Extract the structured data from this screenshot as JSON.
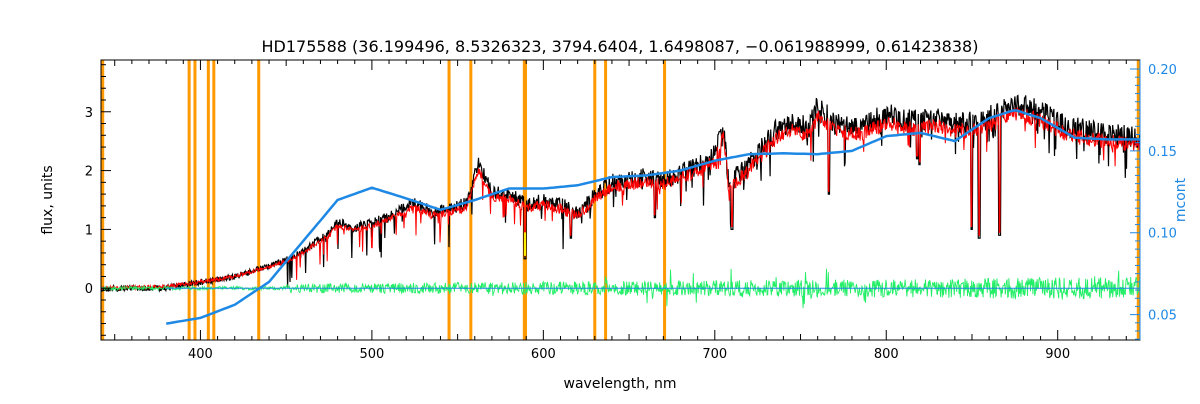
{
  "chart_data": {
    "type": "line",
    "title": "HD175588    (36.199496, 8.5326323, 3794.6404, 1.6498087, −0.061988999, 0.61423838)",
    "xlabel": "wavelength, nm",
    "ylabel": "flux, units",
    "y2label": "mcont",
    "xlim": [
      342,
      948
    ],
    "ylim": [
      -0.88,
      3.88
    ],
    "y2lim": [
      0.0345,
      0.2055
    ],
    "x_ticks": [
      400,
      500,
      600,
      700,
      800,
      900
    ],
    "y_ticks": [
      0,
      1,
      2,
      3
    ],
    "y2_ticks": [
      0.05,
      0.1,
      0.15,
      0.2
    ],
    "y2_tick_labels": [
      "0.05",
      "0.10",
      "0.15",
      "0.20"
    ],
    "grid": false,
    "colors": {
      "observed": "#000000",
      "model": "#ff0000",
      "residual": "#22ee66",
      "continuum": "#1e88e5",
      "masks": "#ff9900",
      "highlight": "#ffee00",
      "right_axis": "#1e88e5"
    },
    "mask_lines": [
      343,
      393.4,
      396.8,
      404.6,
      407.8,
      434.0,
      545.0,
      557.7,
      588.9,
      589.6,
      630.0,
      636.3,
      670.7,
      947
    ],
    "envelope": [
      {
        "x": 342,
        "y": 0.04
      },
      {
        "x": 380,
        "y": 0.06
      },
      {
        "x": 400,
        "y": 0.15
      },
      {
        "x": 420,
        "y": 0.25
      },
      {
        "x": 440,
        "y": 0.42
      },
      {
        "x": 455,
        "y": 0.6
      },
      {
        "x": 465,
        "y": 0.8
      },
      {
        "x": 475,
        "y": 1.0
      },
      {
        "x": 480,
        "y": 1.2
      },
      {
        "x": 490,
        "y": 1.1
      },
      {
        "x": 505,
        "y": 1.25
      },
      {
        "x": 515,
        "y": 1.4
      },
      {
        "x": 525,
        "y": 1.55
      },
      {
        "x": 535,
        "y": 1.4
      },
      {
        "x": 545,
        "y": 1.45
      },
      {
        "x": 555,
        "y": 1.55
      },
      {
        "x": 562,
        "y": 2.25
      },
      {
        "x": 570,
        "y": 1.75
      },
      {
        "x": 580,
        "y": 1.72
      },
      {
        "x": 590,
        "y": 1.55
      },
      {
        "x": 600,
        "y": 1.62
      },
      {
        "x": 610,
        "y": 1.55
      },
      {
        "x": 620,
        "y": 1.4
      },
      {
        "x": 630,
        "y": 1.72
      },
      {
        "x": 640,
        "y": 1.95
      },
      {
        "x": 650,
        "y": 2.0
      },
      {
        "x": 660,
        "y": 2.05
      },
      {
        "x": 670,
        "y": 2.0
      },
      {
        "x": 680,
        "y": 2.15
      },
      {
        "x": 690,
        "y": 2.25
      },
      {
        "x": 700,
        "y": 2.45
      },
      {
        "x": 705,
        "y": 2.95
      },
      {
        "x": 708,
        "y": 1.95
      },
      {
        "x": 720,
        "y": 2.3
      },
      {
        "x": 735,
        "y": 2.85
      },
      {
        "x": 745,
        "y": 3.05
      },
      {
        "x": 755,
        "y": 2.9
      },
      {
        "x": 760,
        "y": 3.3
      },
      {
        "x": 770,
        "y": 3.0
      },
      {
        "x": 785,
        "y": 2.95
      },
      {
        "x": 800,
        "y": 3.15
      },
      {
        "x": 815,
        "y": 3.05
      },
      {
        "x": 830,
        "y": 3.1
      },
      {
        "x": 845,
        "y": 3.0
      },
      {
        "x": 860,
        "y": 3.1
      },
      {
        "x": 875,
        "y": 3.35
      },
      {
        "x": 890,
        "y": 3.2
      },
      {
        "x": 905,
        "y": 2.95
      },
      {
        "x": 920,
        "y": 2.85
      },
      {
        "x": 935,
        "y": 2.8
      },
      {
        "x": 948,
        "y": 2.75
      }
    ],
    "deep_absorptions": [
      {
        "x": 589.3,
        "y": 0.5
      },
      {
        "x": 616.0,
        "y": 0.85
      },
      {
        "x": 665.0,
        "y": 1.2
      },
      {
        "x": 710.0,
        "y": 1.0
      },
      {
        "x": 766.5,
        "y": 1.6
      },
      {
        "x": 818.0,
        "y": 2.2
      },
      {
        "x": 819.5,
        "y": 2.1
      },
      {
        "x": 849.8,
        "y": 1.0
      },
      {
        "x": 854.2,
        "y": 0.85
      },
      {
        "x": 866.2,
        "y": 0.9
      }
    ],
    "continuum": [
      {
        "x": 380,
        "y2": 0.0445
      },
      {
        "x": 400,
        "y2": 0.048
      },
      {
        "x": 420,
        "y2": 0.056
      },
      {
        "x": 440,
        "y2": 0.07
      },
      {
        "x": 460,
        "y2": 0.095
      },
      {
        "x": 480,
        "y2": 0.12
      },
      {
        "x": 500,
        "y2": 0.1275
      },
      {
        "x": 520,
        "y2": 0.121
      },
      {
        "x": 540,
        "y2": 0.114
      },
      {
        "x": 560,
        "y2": 0.12
      },
      {
        "x": 580,
        "y2": 0.127
      },
      {
        "x": 600,
        "y2": 0.127
      },
      {
        "x": 620,
        "y2": 0.129
      },
      {
        "x": 640,
        "y2": 0.134
      },
      {
        "x": 660,
        "y2": 0.135
      },
      {
        "x": 680,
        "y2": 0.138
      },
      {
        "x": 700,
        "y2": 0.144
      },
      {
        "x": 720,
        "y2": 0.148
      },
      {
        "x": 740,
        "y2": 0.1485
      },
      {
        "x": 760,
        "y2": 0.148
      },
      {
        "x": 780,
        "y2": 0.15
      },
      {
        "x": 800,
        "y2": 0.159
      },
      {
        "x": 820,
        "y2": 0.161
      },
      {
        "x": 840,
        "y2": 0.156
      },
      {
        "x": 860,
        "y2": 0.17
      },
      {
        "x": 875,
        "y2": 0.175
      },
      {
        "x": 890,
        "y2": 0.17
      },
      {
        "x": 910,
        "y2": 0.158
      },
      {
        "x": 930,
        "y2": 0.157
      },
      {
        "x": 948,
        "y2": 0.157
      }
    ]
  }
}
